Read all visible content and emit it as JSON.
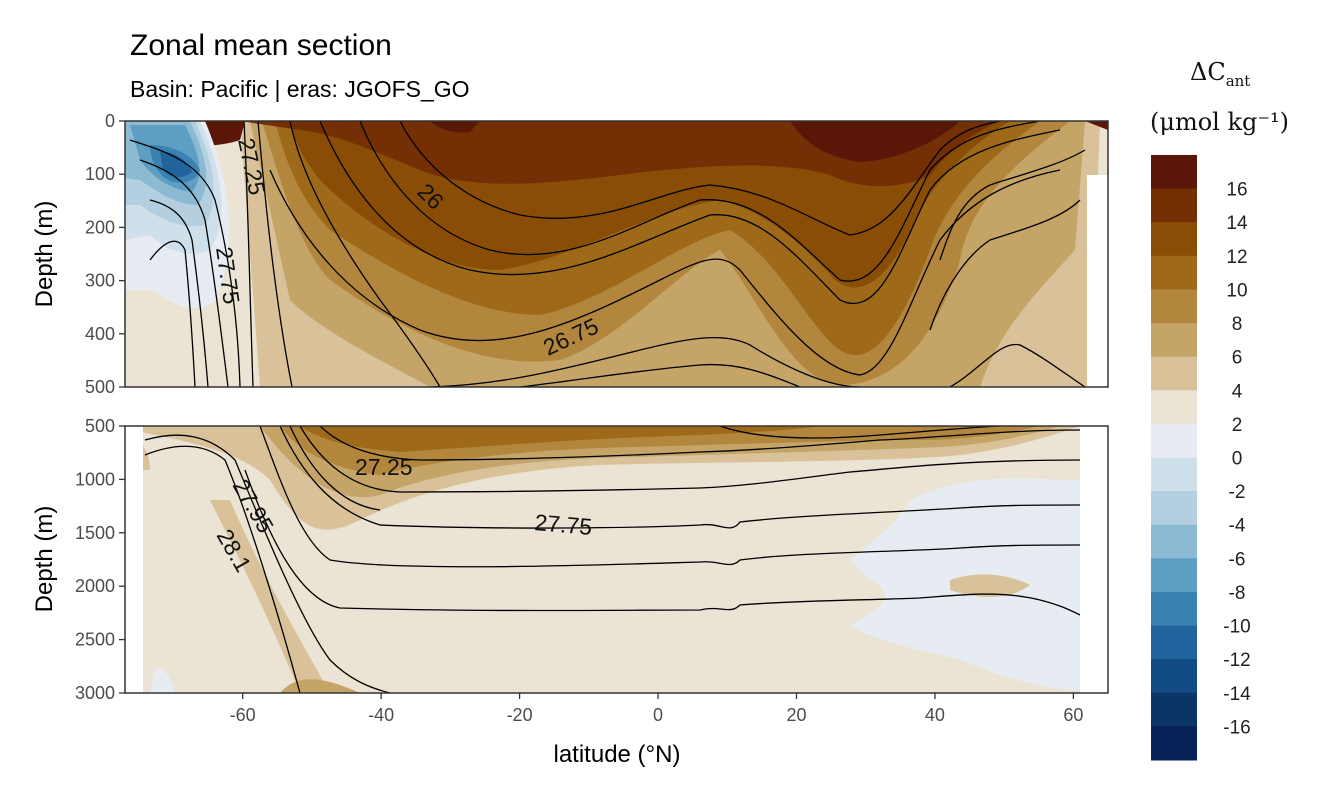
{
  "chart_data": {
    "type": "heatmap",
    "title": "Zonal mean section",
    "subtitle": "Basin: Pacific | eras: JGOFS_GO",
    "xlabel": "latitude (°N)",
    "ylabel": "Depth (m)",
    "xlim": [
      -77,
      65
    ],
    "x_ticks": [
      "-60",
      "-40",
      "-20",
      "0",
      "20",
      "40",
      "60"
    ],
    "x_tick_values": [
      -60,
      -40,
      -20,
      0,
      20,
      40,
      60
    ],
    "panels": [
      {
        "name": "upper",
        "ylim": [
          0,
          500
        ],
        "y_ticks": [
          "0",
          "100",
          "200",
          "300",
          "400",
          "500"
        ],
        "y_tick_values": [
          0,
          100,
          200,
          300,
          400,
          500
        ]
      },
      {
        "name": "lower",
        "ylim": [
          500,
          3000
        ],
        "y_ticks": [
          "500",
          "1000",
          "1500",
          "2000",
          "2500",
          "3000"
        ],
        "y_tick_values": [
          500,
          1000,
          1500,
          2000,
          2500,
          3000
        ]
      }
    ],
    "legend": {
      "title_main": "ΔC",
      "title_sub": "ant",
      "units": "(μmol kg⁻¹)",
      "levels": [
        "16",
        "14",
        "12",
        "10",
        "8",
        "6",
        "4",
        "2",
        "0",
        "-2",
        "-4",
        "-6",
        "-8",
        "-10",
        "-12",
        "-14",
        "-16"
      ],
      "colors": [
        "#5a1606",
        "#743004",
        "#8a4d06",
        "#9e6a1a",
        "#b2863d",
        "#c5a468",
        "#d9c29a",
        "#ebe3d3",
        "#e6ecf1",
        "#d0e0ea",
        "#b3cfe0",
        "#8dbad3",
        "#5f9ec3",
        "#3a82b1",
        "#1f649c",
        "#134b84",
        "#0b3467",
        "#082157"
      ],
      "position": "right"
    },
    "contour_labels": {
      "upper": [
        "27.25",
        "27.75",
        "26",
        "26.75"
      ],
      "lower": [
        "27.25",
        "27.95",
        "28.1",
        "27.75"
      ]
    }
  }
}
